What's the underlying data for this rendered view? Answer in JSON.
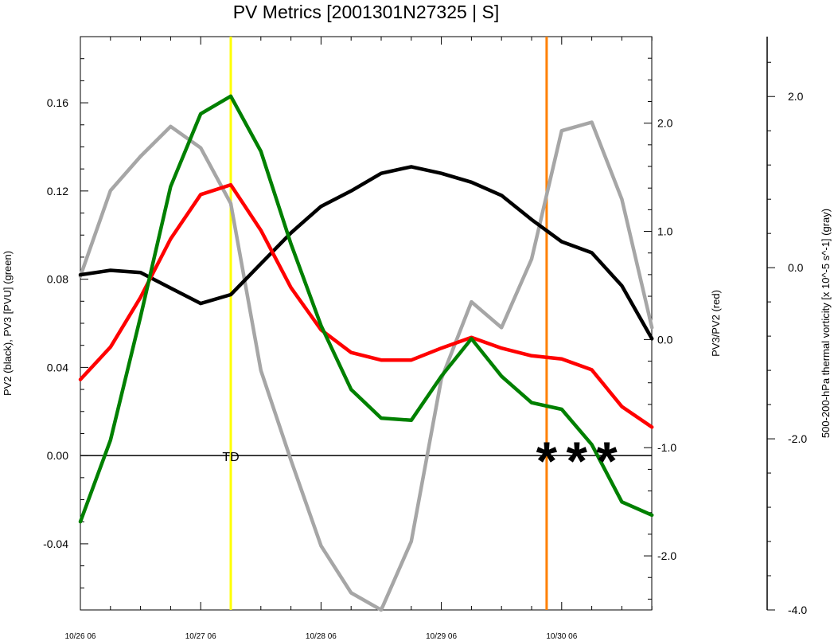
{
  "chart_data": {
    "type": "line",
    "title": "PV Metrics [2001301N27325 | S]",
    "x_tick_labels": [
      "10/26 06",
      "10/27 06",
      "10/28 06",
      "10/29 06",
      "10/30 06"
    ],
    "x_steps_per_label": 4,
    "x_range_steps": [
      0,
      19
    ],
    "y_left": {
      "label": "PV2 (black), PV3 [PVU] (green)",
      "range": [
        -0.07,
        0.19
      ],
      "ticks": [
        -0.04,
        0.0,
        0.04,
        0.08,
        0.12,
        0.16
      ],
      "tick_labels": [
        "-0.04",
        "0.00",
        "0.04",
        "0.08",
        "0.12",
        "0.16"
      ]
    },
    "y_right": {
      "label": "PV3/PV2 (red)",
      "range": [
        -2.5,
        2.8
      ],
      "ticks": [
        -2.0,
        -1.0,
        0.0,
        1.0,
        2.0
      ],
      "tick_labels": [
        "-2.0",
        "-1.0",
        "0.0",
        "1.0",
        "2.0"
      ]
    },
    "y_far_right": {
      "label": "500-200-hPa thermal vorticity [x 10^-5 s^-1] (gray)",
      "range": [
        -4.0,
        2.7
      ],
      "ticks": [
        -4.0,
        -2.0,
        0.0,
        2.0
      ],
      "tick_labels": [
        "-4.0",
        "-2.0",
        "0.0",
        "2.0"
      ]
    },
    "series": [
      {
        "axis": "left",
        "color": "#000000",
        "values": [
          0.082,
          0.084,
          0.083,
          0.076,
          0.069,
          0.073,
          0.087,
          0.101,
          0.113,
          0.12,
          0.128,
          0.131,
          0.128,
          0.124,
          0.118,
          0.107,
          0.097,
          0.092,
          0.077,
          0.053
        ]
      },
      {
        "axis": "left",
        "color": "#008000",
        "values": [
          -0.03,
          0.007,
          0.063,
          0.122,
          0.155,
          0.163,
          0.138,
          0.096,
          0.059,
          0.03,
          0.017,
          0.016,
          0.036,
          0.053,
          0.036,
          0.024,
          0.021,
          0.005,
          -0.021,
          -0.027
        ]
      },
      {
        "axis": "right",
        "color": "#ff0000",
        "values": [
          -0.37,
          -0.07,
          0.39,
          0.93,
          1.34,
          1.43,
          1.01,
          0.48,
          0.09,
          -0.12,
          -0.19,
          -0.19,
          -0.08,
          0.02,
          -0.08,
          -0.15,
          -0.18,
          -0.28,
          -0.62,
          -0.81
        ]
      },
      {
        "axis": "far_right",
        "color": "#a6a6a6",
        "values": [
          -0.1,
          0.9,
          1.3,
          1.65,
          1.4,
          0.75,
          -1.2,
          -2.25,
          -3.25,
          -3.8,
          -4.0,
          -3.2,
          -1.3,
          -0.4,
          -0.7,
          0.1,
          1.6,
          1.7,
          0.8,
          -0.7
        ]
      }
    ],
    "vertical_lines": [
      {
        "x_step": 5,
        "color": "#ffff00"
      },
      {
        "x_step": 15.5,
        "color": "#ff8000"
      }
    ],
    "zero_line_value": 0.0,
    "annotations": [
      {
        "text": "TD",
        "x_step": 5,
        "y": 0.0
      }
    ],
    "markers": [
      {
        "text": "*",
        "x_step": 15.5
      },
      {
        "text": "*",
        "x_step": 16.5
      },
      {
        "text": "*",
        "x_step": 17.5
      }
    ]
  }
}
